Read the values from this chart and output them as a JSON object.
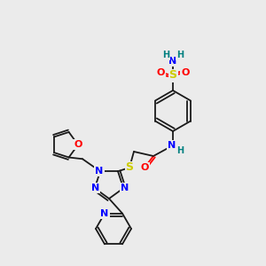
{
  "bg_color": "#ebebeb",
  "bond_color": "#1a1a1a",
  "colors": {
    "N": "#0000ff",
    "O": "#ff0000",
    "S": "#cccc00",
    "C": "#1a1a1a",
    "H": "#008080"
  },
  "font_size_atom": 7,
  "fig_size": [
    3.0,
    3.0
  ],
  "dpi": 100
}
